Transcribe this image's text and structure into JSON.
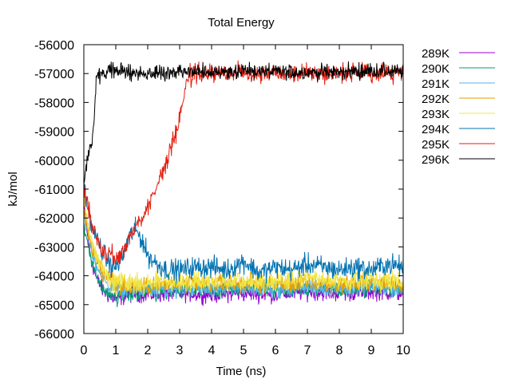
{
  "chart_data": {
    "type": "line",
    "title": "Total Energy",
    "xlabel": "Time (ns)",
    "ylabel": "kJ/mol",
    "xlim": [
      0,
      10
    ],
    "ylim": [
      -66000,
      -56000
    ],
    "x_ticks": [
      0,
      1,
      2,
      3,
      4,
      5,
      6,
      7,
      8,
      9,
      10
    ],
    "x_tick_labels": [
      "0",
      "1",
      "2",
      "3",
      "4",
      "5",
      "6",
      "7",
      "8",
      "9",
      "10"
    ],
    "y_ticks": [
      -66000,
      -65000,
      -64000,
      -63000,
      -62000,
      -61000,
      -60000,
      -59000,
      -58000,
      -57000,
      -56000
    ],
    "y_tick_labels": [
      "-66000",
      "-65000",
      "-64000",
      "-63000",
      "-62000",
      "-61000",
      "-60000",
      "-59000",
      "-58000",
      "-57000",
      "-56000"
    ],
    "grid": false,
    "legend_position": "outside-right",
    "series": [
      {
        "name": "289K",
        "color": "#9400d3",
        "noise": 180,
        "x": [
          0,
          0.1,
          0.2,
          0.4,
          0.6,
          0.8,
          1.0,
          1.3,
          1.6,
          2.0,
          3.0,
          4.0,
          5.0,
          6.0,
          7.0,
          8.0,
          9.0,
          10.0
        ],
        "y": [
          -61600,
          -62500,
          -63300,
          -64100,
          -64500,
          -64700,
          -64800,
          -64700,
          -64600,
          -64650,
          -64600,
          -64650,
          -64600,
          -64650,
          -64550,
          -64600,
          -64550,
          -64600
        ]
      },
      {
        "name": "290K",
        "color": "#009e73",
        "noise": 170,
        "x": [
          0,
          0.1,
          0.2,
          0.4,
          0.6,
          0.8,
          1.0,
          1.3,
          1.6,
          2.0,
          3.0,
          4.0,
          5.0,
          6.0,
          7.0,
          8.0,
          9.0,
          10.0
        ],
        "y": [
          -62300,
          -62800,
          -63400,
          -64100,
          -64500,
          -64700,
          -64750,
          -64700,
          -64600,
          -64550,
          -64500,
          -64500,
          -64450,
          -64500,
          -64450,
          -64500,
          -64450,
          -64500
        ]
      },
      {
        "name": "291K",
        "color": "#56b4e9",
        "noise": 170,
        "x": [
          0,
          0.1,
          0.2,
          0.4,
          0.6,
          0.8,
          1.0,
          1.3,
          1.6,
          2.0,
          3.0,
          4.0,
          5.0,
          6.0,
          7.0,
          8.0,
          9.0,
          10.0
        ],
        "y": [
          -61800,
          -62400,
          -63000,
          -63700,
          -64100,
          -64300,
          -64400,
          -64500,
          -64500,
          -64450,
          -64500,
          -64450,
          -64400,
          -64450,
          -64400,
          -64450,
          -64400,
          -64450
        ]
      },
      {
        "name": "292K",
        "color": "#e69f00",
        "noise": 200,
        "x": [
          0,
          0.1,
          0.2,
          0.4,
          0.6,
          0.8,
          1.0,
          1.3,
          1.6,
          2.0,
          3.0,
          4.0,
          5.0,
          6.0,
          7.0,
          8.0,
          9.0,
          10.0
        ],
        "y": [
          -61900,
          -62300,
          -62800,
          -63500,
          -63900,
          -64100,
          -64300,
          -64350,
          -64400,
          -64350,
          -64300,
          -64300,
          -64250,
          -64300,
          -64250,
          -64300,
          -64200,
          -64300
        ]
      },
      {
        "name": "293K",
        "color": "#f0e442",
        "noise": 220,
        "x": [
          0,
          0.1,
          0.2,
          0.4,
          0.6,
          0.8,
          1.0,
          1.3,
          1.6,
          2.0,
          3.0,
          4.0,
          5.0,
          6.0,
          7.0,
          8.0,
          9.0,
          10.0
        ],
        "y": [
          -61400,
          -62000,
          -62600,
          -63400,
          -63800,
          -64000,
          -64150,
          -64250,
          -64300,
          -64250,
          -64200,
          -64200,
          -64250,
          -64200,
          -64100,
          -64200,
          -64150,
          -64200
        ]
      },
      {
        "name": "294K",
        "color": "#0072b2",
        "noise": 230,
        "x": [
          0,
          0.1,
          0.2,
          0.4,
          0.6,
          0.8,
          1.0,
          1.2,
          1.4,
          1.6,
          1.8,
          2.0,
          2.3,
          2.6,
          3.0,
          3.5,
          4.0,
          4.5,
          5.0,
          5.5,
          6.0,
          6.5,
          7.0,
          7.5,
          8.0,
          8.5,
          9.0,
          9.5,
          10.0
        ],
        "y": [
          -60900,
          -61500,
          -62000,
          -62700,
          -63200,
          -63600,
          -63700,
          -63400,
          -62700,
          -62400,
          -62700,
          -63300,
          -63600,
          -63800,
          -63800,
          -63700,
          -63700,
          -63800,
          -63500,
          -63900,
          -63700,
          -63800,
          -63600,
          -63700,
          -63800,
          -63700,
          -63800,
          -63600,
          -63700
        ]
      },
      {
        "name": "295K",
        "color": "#e51e10",
        "noise": 200,
        "x": [
          0,
          0.1,
          0.2,
          0.4,
          0.6,
          0.8,
          1.0,
          1.1,
          1.2,
          1.3,
          1.5,
          1.7,
          1.9,
          2.1,
          2.3,
          2.5,
          2.7,
          2.9,
          3.0,
          3.1,
          3.2,
          3.3,
          3.5,
          4.0,
          4.5,
          5.0,
          5.5,
          6.0,
          6.5,
          7.0,
          7.5,
          8.0,
          8.5,
          9.0,
          9.5,
          10.0
        ],
        "y": [
          -61000,
          -61400,
          -62000,
          -62700,
          -63200,
          -63300,
          -63300,
          -63400,
          -63200,
          -63000,
          -62500,
          -62200,
          -61800,
          -61400,
          -60900,
          -60300,
          -59700,
          -59000,
          -58500,
          -58000,
          -57300,
          -57100,
          -57000,
          -57000,
          -57000,
          -56900,
          -57000,
          -56900,
          -57000,
          -56950,
          -57000,
          -56950,
          -57000,
          -57000,
          -56950,
          -57000
        ]
      },
      {
        "name": "296K",
        "color": "#000000",
        "noise": 170,
        "x": [
          0,
          0.1,
          0.15,
          0.2,
          0.25,
          0.3,
          0.33,
          0.36,
          0.4,
          0.45,
          0.5,
          1.0,
          2.0,
          3.0,
          4.0,
          5.0,
          6.0,
          7.0,
          8.0,
          9.0,
          10.0
        ],
        "y": [
          -60800,
          -60100,
          -59700,
          -59600,
          -59400,
          -59000,
          -58500,
          -57800,
          -57100,
          -56900,
          -57000,
          -56900,
          -57000,
          -56950,
          -56950,
          -56900,
          -56950,
          -56950,
          -56950,
          -56900,
          -56950
        ]
      }
    ]
  }
}
